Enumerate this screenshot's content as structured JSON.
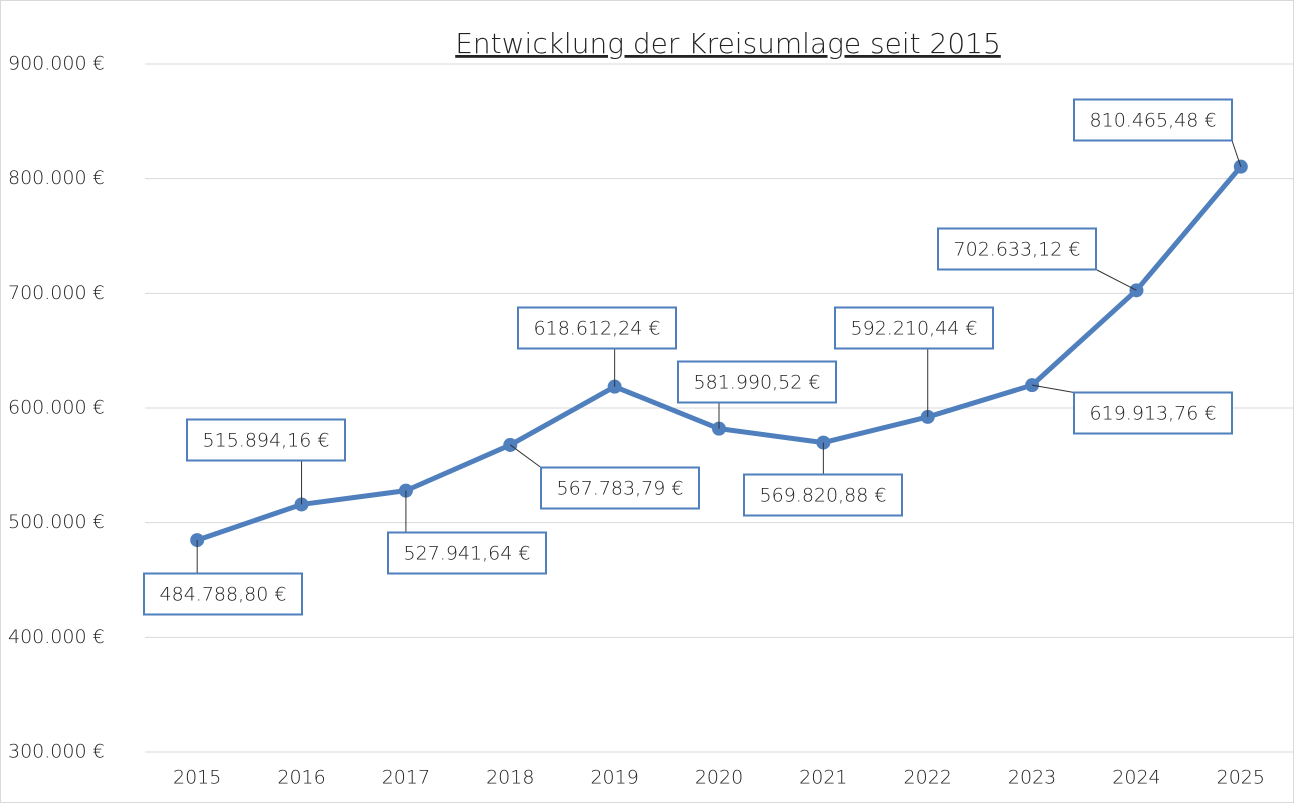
{
  "chart_data": {
    "type": "line",
    "title": "Entwicklung der Kreisumlage seit 2015",
    "categories": [
      "2015",
      "2016",
      "2017",
      "2018",
      "2019",
      "2020",
      "2021",
      "2022",
      "2023",
      "2024",
      "2025"
    ],
    "series": [
      {
        "name": "Kreisumlage",
        "color": "#4f7fbd",
        "values": [
          484788.8,
          515894.16,
          527941.64,
          567783.79,
          618612.24,
          581990.52,
          569820.88,
          592210.44,
          619913.76,
          702633.12,
          810465.48
        ],
        "value_labels": [
          "484.788,80 €",
          "515.894,16 €",
          "527.941,64 €",
          "567.783,79 €",
          "618.612,24 €",
          "581.990,52 €",
          "569.820,88 €",
          "592.210,44 €",
          "619.913,76 €",
          "702.633,12 €",
          "810.465,48 €"
        ]
      }
    ],
    "ylim": [
      300000,
      900000
    ],
    "yticks": [
      {
        "value": 300000,
        "label": "300.000 €"
      },
      {
        "value": 400000,
        "label": "400.000 €"
      },
      {
        "value": 500000,
        "label": "500.000 €"
      },
      {
        "value": 600000,
        "label": "600.000 €"
      },
      {
        "value": 700000,
        "label": "700.000 €"
      },
      {
        "value": 800000,
        "label": "800.000 €"
      },
      {
        "value": 900000,
        "label": "900.000 €"
      }
    ],
    "grid": true
  }
}
